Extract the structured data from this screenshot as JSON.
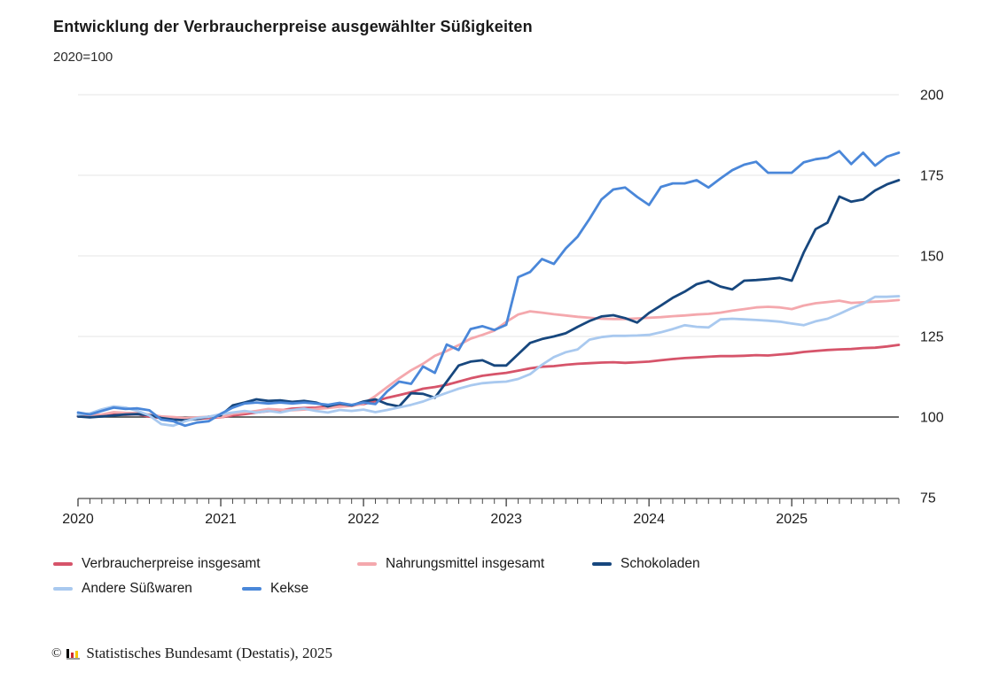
{
  "header": {
    "title": "Entwicklung der Verbraucherpreise ausgewählter Süßigkeiten",
    "subtitle": "2020=100"
  },
  "footer": {
    "copyright_symbol": "©",
    "source": "Statistisches Bundesamt (Destatis), 2025",
    "logo": {
      "bar_colors": [
        "#000000",
        "#cc2b31",
        "#f8c600"
      ],
      "base_color": "#9a9a9a"
    }
  },
  "chart_data": {
    "type": "line",
    "title": "Entwicklung der Verbraucherpreise ausgewählter Süßigkeiten",
    "subtitle": "2020=100",
    "x_unit": "month",
    "x_start": "2020-01",
    "x_end": "2025-10",
    "points_per_series": 70,
    "x_tick_labels": [
      "2020",
      "2021",
      "2022",
      "2023",
      "2024",
      "2025"
    ],
    "y_ticks": [
      200,
      175,
      150,
      125,
      100,
      75
    ],
    "ylim": [
      75,
      200
    ],
    "baseline_value": 100,
    "grid": "horizontal",
    "legend_position": "bottom",
    "colors": {
      "grid": "#e4e4e4",
      "baseline": "#3b3b3b",
      "axis": "#4a4a4a",
      "labels": "#1c1c1c"
    },
    "series": [
      {
        "name": "Verbraucherpreise insgesamt",
        "color": "#d6546a",
        "values": [
          100.2,
          100.4,
          100.5,
          100.9,
          100.7,
          100.9,
          100.1,
          99.7,
          99.5,
          99.5,
          99.4,
          99.7,
          99.9,
          100.5,
          100.9,
          101.4,
          101.8,
          102.1,
          102.6,
          102.8,
          102.9,
          103.3,
          103.6,
          103.7,
          104.0,
          104.9,
          106.0,
          106.8,
          107.7,
          108.8,
          109.3,
          110.0,
          111.0,
          112.0,
          112.8,
          113.3,
          113.7,
          114.4,
          115.1,
          115.6,
          115.8,
          116.2,
          116.5,
          116.7,
          116.9,
          117.0,
          116.8,
          117.0,
          117.2,
          117.6,
          118.0,
          118.3,
          118.5,
          118.7,
          118.9,
          118.9,
          119.0,
          119.2,
          119.1,
          119.4,
          119.7,
          120.2,
          120.5,
          120.8,
          121.0,
          121.1,
          121.4,
          121.5,
          121.9,
          122.4
        ]
      },
      {
        "name": "Nahrungsmittel insgesamt",
        "color": "#f4a8ad",
        "values": [
          100.4,
          100.5,
          100.8,
          101.5,
          101.3,
          101.2,
          100.8,
          100.2,
          100.0,
          99.7,
          99.9,
          100.1,
          99.9,
          101.0,
          101.4,
          101.9,
          102.5,
          102.3,
          102.1,
          102.3,
          102.5,
          102.8,
          103.2,
          103.4,
          104.2,
          106.5,
          109.3,
          112.0,
          114.5,
          116.5,
          119.0,
          120.5,
          122.3,
          124.3,
          125.5,
          126.8,
          129.5,
          131.8,
          132.8,
          132.4,
          131.9,
          131.5,
          131.1,
          130.8,
          130.5,
          130.4,
          130.4,
          130.6,
          130.8,
          131.0,
          131.3,
          131.5,
          131.8,
          132.0,
          132.4,
          133.0,
          133.5,
          134.0,
          134.2,
          134.0,
          133.5,
          134.6,
          135.3,
          135.7,
          136.1,
          135.4,
          135.6,
          135.8,
          136.0,
          136.3
        ]
      },
      {
        "name": "Schokoladen",
        "color": "#17477e",
        "values": [
          100.2,
          99.9,
          100.2,
          100.5,
          100.8,
          100.9,
          100.6,
          99.7,
          99.2,
          99.0,
          99.4,
          100.1,
          100.5,
          103.6,
          104.5,
          105.5,
          105.0,
          105.2,
          104.7,
          105.0,
          104.5,
          103.3,
          104.2,
          103.6,
          104.8,
          105.5,
          104.0,
          103.3,
          107.4,
          107.2,
          106.0,
          111.0,
          116.0,
          117.2,
          117.6,
          116.0,
          116.0,
          119.5,
          123.0,
          124.2,
          125.0,
          126.0,
          128.0,
          129.8,
          131.2,
          131.6,
          130.7,
          129.3,
          132.3,
          134.6,
          137.0,
          138.9,
          141.2,
          142.2,
          140.5,
          139.6,
          142.3,
          142.5,
          142.8,
          143.2,
          142.3,
          151.0,
          158.3,
          160.3,
          168.4,
          166.8,
          167.5,
          170.3,
          172.2,
          173.5
        ]
      },
      {
        "name": "Andere Süßwaren",
        "color": "#a9c9ef",
        "values": [
          100.8,
          101.1,
          102.4,
          103.3,
          102.9,
          101.9,
          100.5,
          97.8,
          97.3,
          98.7,
          99.7,
          100.1,
          100.9,
          101.4,
          101.9,
          101.4,
          101.9,
          101.4,
          102.2,
          102.6,
          101.9,
          101.4,
          102.2,
          101.9,
          102.3,
          101.5,
          102.2,
          103.0,
          103.8,
          104.8,
          106.2,
          107.5,
          108.8,
          109.8,
          110.5,
          110.8,
          111.0,
          111.8,
          113.3,
          116.2,
          118.6,
          120.1,
          121.0,
          124.0,
          124.8,
          125.2,
          125.2,
          125.3,
          125.5,
          126.3,
          127.3,
          128.5,
          128.0,
          127.8,
          130.3,
          130.5,
          130.3,
          130.1,
          129.9,
          129.6,
          129.0,
          128.5,
          129.7,
          130.5,
          132.0,
          133.7,
          135.2,
          137.3,
          137.3,
          137.5
        ]
      },
      {
        "name": "Kekse",
        "color": "#4a87d9",
        "values": [
          101.4,
          100.8,
          101.9,
          102.9,
          102.5,
          102.7,
          102.1,
          99.2,
          98.7,
          97.3,
          98.3,
          98.7,
          101.0,
          102.9,
          104.2,
          104.5,
          104.2,
          104.5,
          104.2,
          104.5,
          104.2,
          103.8,
          104.4,
          103.8,
          104.5,
          104.0,
          108.0,
          111.0,
          110.3,
          115.7,
          113.7,
          122.5,
          120.8,
          127.3,
          128.2,
          127.0,
          128.6,
          143.4,
          145.0,
          149.0,
          147.5,
          152.3,
          156.0,
          161.5,
          167.5,
          170.6,
          171.2,
          168.3,
          165.8,
          171.4,
          172.5,
          172.5,
          173.5,
          171.2,
          174.0,
          176.6,
          178.3,
          179.2,
          175.8,
          175.8,
          175.8,
          179.0,
          180.0,
          180.5,
          182.5,
          178.5,
          182.0,
          178.0,
          180.8,
          182.0
        ]
      }
    ]
  }
}
